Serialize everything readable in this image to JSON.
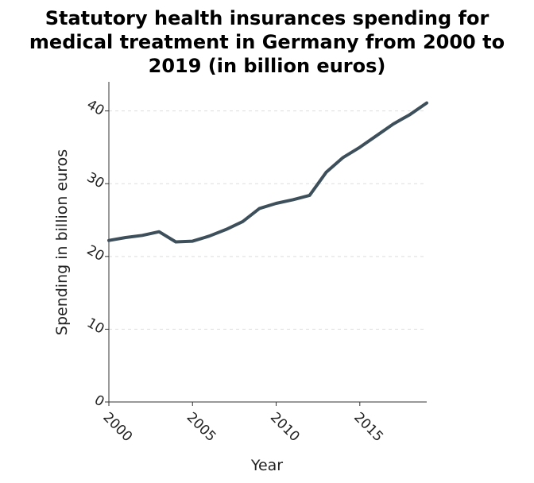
{
  "chart_data": {
    "type": "line",
    "title_lines": [
      "Statutory health insurances spending for",
      "medical treatment in Germany from 2000 to",
      "2019 (in billion euros)"
    ],
    "xlabel": "Year",
    "ylabel": "Spending in billion euros",
    "xlim": [
      2000,
      2019
    ],
    "ylim": [
      0,
      44
    ],
    "x_ticks": [
      2000,
      2005,
      2010,
      2015
    ],
    "y_ticks": [
      0,
      10,
      20,
      30,
      40
    ],
    "grid": true,
    "line_color": "#3d4f5a",
    "x": [
      2000,
      2001,
      2002,
      2003,
      2004,
      2005,
      2006,
      2007,
      2008,
      2009,
      2010,
      2011,
      2012,
      2013,
      2014,
      2015,
      2016,
      2017,
      2018,
      2019
    ],
    "values": [
      22.2,
      22.6,
      22.9,
      23.4,
      22.0,
      22.1,
      22.8,
      23.7,
      24.8,
      26.6,
      27.3,
      27.8,
      28.4,
      31.6,
      33.6,
      35.0,
      36.6,
      38.2,
      39.5,
      41.1
    ]
  }
}
